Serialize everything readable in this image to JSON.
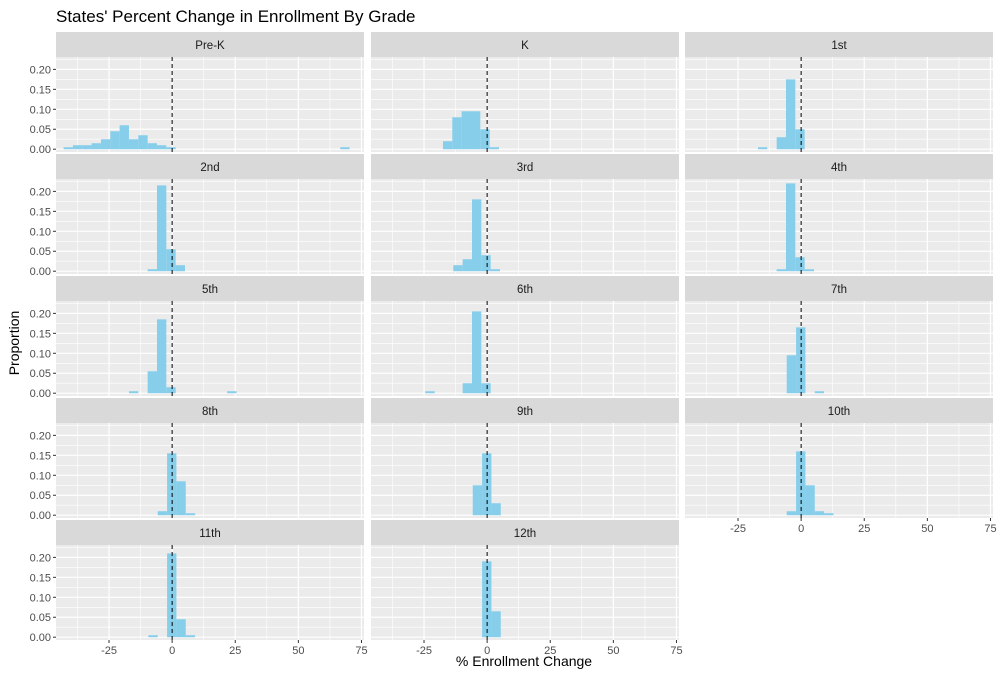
{
  "chart_data": {
    "type": "bar",
    "title": "States' Percent Change in Enrollment By Grade",
    "xlabel": "% Enrollment Change",
    "ylabel": "Proportion",
    "xlim": [
      -46,
      76
    ],
    "ylim": [
      -0.007,
      0.231
    ],
    "x_ticks": [
      -25,
      0,
      25,
      50,
      75
    ],
    "x_tick_labels": [
      "-25",
      "0",
      "25",
      "50",
      "75"
    ],
    "y_ticks": [
      0,
      0.05,
      0.1,
      0.15,
      0.2
    ],
    "y_tick_labels": [
      "0.00",
      "0.05",
      "0.10",
      "0.15",
      "0.20"
    ],
    "bin_width": 3.7,
    "reference_line_x": 0,
    "colors": {
      "bar": "#87CEEB",
      "panel": "#EBEBEB",
      "strip": "#D9D9D9",
      "grid": "#FFFFFF",
      "reference_line": "#000000"
    },
    "layout": {
      "columns": 3
    },
    "series": [
      {
        "name": "Pre-K",
        "bins": [
          [
            -43,
            0.005
          ],
          [
            -39.3,
            0.01
          ],
          [
            -35.6,
            0.01
          ],
          [
            -31.9,
            0.015
          ],
          [
            -28.2,
            0.025
          ],
          [
            -24.5,
            0.045
          ],
          [
            -20.8,
            0.06
          ],
          [
            -17.1,
            0.025
          ],
          [
            -13.4,
            0.035
          ],
          [
            -9.7,
            0.015
          ],
          [
            -6,
            0.01
          ],
          [
            -2.3,
            0.005
          ],
          [
            66.6,
            0.005
          ]
        ]
      },
      {
        "name": "K",
        "bins": [
          [
            -17.5,
            0.02
          ],
          [
            -13.8,
            0.08
          ],
          [
            -10.1,
            0.095
          ],
          [
            -6.4,
            0.095
          ],
          [
            -2.7,
            0.05
          ],
          [
            1,
            0.005
          ]
        ]
      },
      {
        "name": "1st",
        "bins": [
          [
            -17.1,
            0.005
          ],
          [
            -9.7,
            0.03
          ],
          [
            -6,
            0.175
          ],
          [
            -2.3,
            0.05
          ]
        ]
      },
      {
        "name": "2nd",
        "bins": [
          [
            -9.7,
            0.005
          ],
          [
            -6,
            0.215
          ],
          [
            -2.3,
            0.055
          ],
          [
            1.4,
            0.015
          ]
        ]
      },
      {
        "name": "3rd",
        "bins": [
          [
            -13.4,
            0.015
          ],
          [
            -9.7,
            0.03
          ],
          [
            -6,
            0.18
          ],
          [
            -2.3,
            0.04
          ],
          [
            1.4,
            0.005
          ]
        ]
      },
      {
        "name": "4th",
        "bins": [
          [
            -9.7,
            0.005
          ],
          [
            -6,
            0.22
          ],
          [
            -2.3,
            0.035
          ],
          [
            1.4,
            0.005
          ]
        ]
      },
      {
        "name": "5th",
        "bins": [
          [
            -17.1,
            0.005
          ],
          [
            -9.7,
            0.055
          ],
          [
            -6,
            0.185
          ],
          [
            -2.3,
            0.015
          ],
          [
            21.8,
            0.005
          ]
        ]
      },
      {
        "name": "6th",
        "bins": [
          [
            -24.5,
            0.005
          ],
          [
            -9.7,
            0.025
          ],
          [
            -6,
            0.205
          ],
          [
            -2.3,
            0.025
          ]
        ]
      },
      {
        "name": "7th",
        "bins": [
          [
            -5.7,
            0.095
          ],
          [
            -2,
            0.165
          ],
          [
            5.4,
            0.005
          ]
        ]
      },
      {
        "name": "8th",
        "bins": [
          [
            -5.7,
            0.01
          ],
          [
            -2,
            0.155
          ],
          [
            1.7,
            0.085
          ],
          [
            5.4,
            0.005
          ]
        ]
      },
      {
        "name": "9th",
        "bins": [
          [
            -5.7,
            0.075
          ],
          [
            -2,
            0.155
          ],
          [
            1.7,
            0.03
          ]
        ]
      },
      {
        "name": "10th",
        "bins": [
          [
            -5.7,
            0.01
          ],
          [
            -2,
            0.16
          ],
          [
            1.7,
            0.075
          ],
          [
            5.4,
            0.01
          ],
          [
            9.1,
            0.005
          ]
        ]
      },
      {
        "name": "11th",
        "bins": [
          [
            -9.4,
            0.005
          ],
          [
            -2,
            0.21
          ],
          [
            1.7,
            0.045
          ],
          [
            5.4,
            0.005
          ]
        ]
      },
      {
        "name": "12th",
        "bins": [
          [
            -2,
            0.19
          ],
          [
            1.7,
            0.065
          ]
        ]
      }
    ]
  }
}
